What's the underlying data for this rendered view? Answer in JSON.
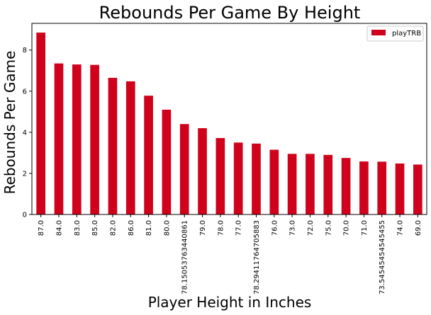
{
  "chart_data": {
    "type": "bar",
    "title": "Rebounds Per Game By Height",
    "xlabel": "Player Height in Inches",
    "ylabel": "Rebounds Per Game",
    "categories": [
      "87.0",
      "84.0",
      "83.0",
      "85.0",
      "82.0",
      "86.0",
      "81.0",
      "80.0",
      "78.15053763440861",
      "79.0",
      "78.0",
      "77.0",
      "78.29411764705883",
      "76.0",
      "73.0",
      "72.0",
      "75.0",
      "70.0",
      "71.0",
      "73.54545454545455",
      "74.0",
      "69.0"
    ],
    "series": [
      {
        "name": "playTRB",
        "color": "#d0021b",
        "values": [
          8.85,
          7.35,
          7.3,
          7.28,
          6.65,
          6.48,
          5.78,
          5.1,
          4.4,
          4.2,
          3.72,
          3.5,
          3.45,
          3.15,
          2.95,
          2.95,
          2.9,
          2.75,
          2.58,
          2.57,
          2.48,
          2.43
        ]
      }
    ],
    "ylim": [
      0,
      9.3
    ],
    "yticks": [
      "0",
      "2",
      "4",
      "6",
      "8"
    ],
    "grid": false,
    "legend": "top-right"
  }
}
